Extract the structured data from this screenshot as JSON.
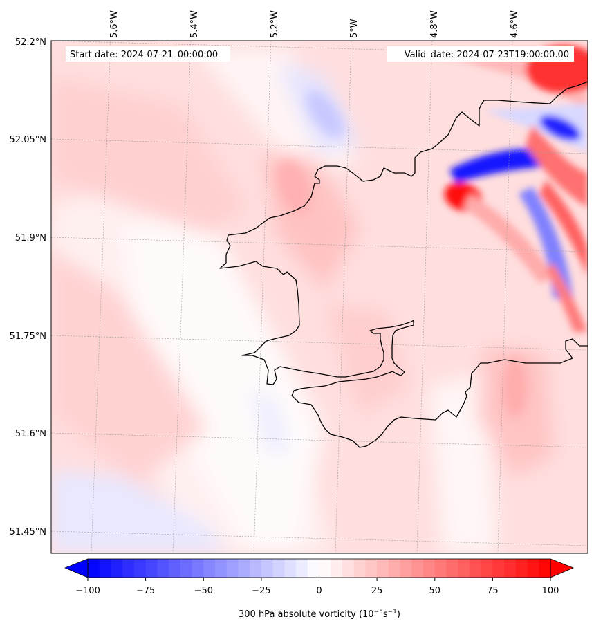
{
  "start_date": "Start date: 2024-07-21_00:00:00",
  "valid_date": "Valid_date: 2024-07-23T19:00:00.00",
  "lon_ticks": [
    "5.6°W",
    "5.4°W",
    "5.2°W",
    "5°W",
    "4.8°W",
    "4.6°W"
  ],
  "lat_ticks": [
    "52.2°N",
    "52.05°N",
    "51.9°N",
    "51.75°N",
    "51.6°N",
    "51.45°N"
  ],
  "colorbar": {
    "ticks": [
      "−100",
      "−75",
      "−50",
      "−25",
      "0",
      "25",
      "50",
      "75",
      "100"
    ],
    "title_main": "300 hPa absolute vorticity (10",
    "title_exp1": "−5",
    "title_mid": "s",
    "title_exp2": "−1",
    "title_end": ")",
    "min": -100,
    "max": 100,
    "levels": 40
  },
  "colors": {
    "negative": "#0000ff",
    "neutral": "#ffffff",
    "positive": "#ff0000",
    "coastline": "#000000"
  }
}
